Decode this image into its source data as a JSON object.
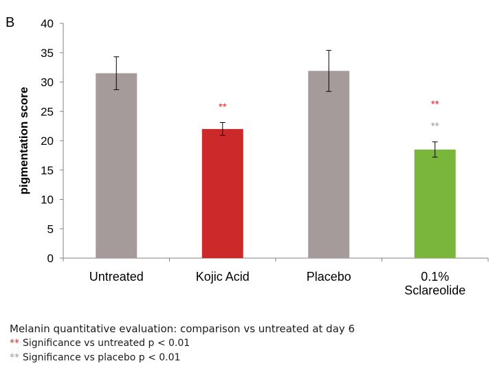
{
  "panel_label": "B",
  "colors": {
    "untreated": "#a59b9b",
    "kojic": "#cc2a2a",
    "placebo": "#a59b9b",
    "sclareolide": "#7ab63b",
    "star_red": "#d52a2a",
    "star_grey": "#9a9a9a"
  },
  "chart_data": {
    "type": "bar",
    "ylabel": "pigmentation score",
    "xlabel": "",
    "ylim": [
      0,
      40
    ],
    "yticks": [
      0,
      5,
      10,
      15,
      20,
      25,
      30,
      35,
      40
    ],
    "grid": false,
    "categories": [
      "Untreated",
      "Kojic Acid",
      "Placebo",
      "0.1% Sclareolide"
    ],
    "category_lines": [
      [
        "Untreated"
      ],
      [
        "Kojic Acid"
      ],
      [
        "Placebo"
      ],
      [
        "0.1%",
        "Sclareolide"
      ]
    ],
    "values": [
      31.5,
      22.0,
      31.9,
      18.5
    ],
    "error": [
      2.8,
      1.1,
      3.5,
      1.3
    ],
    "bar_colors": [
      "#a59b9b",
      "#cc2a2a",
      "#a59b9b",
      "#7ab63b"
    ],
    "annotations": [
      {
        "category": "Kojic Acid",
        "marks": [
          {
            "text": "**",
            "color": "#d52a2a"
          }
        ]
      },
      {
        "category": "0.1% Sclareolide",
        "marks": [
          {
            "text": "**",
            "color": "#d52a2a"
          },
          {
            "text": "**",
            "color": "#9a9a9a"
          }
        ]
      }
    ]
  },
  "notes": {
    "caption": "Melanin quantitative evaluation: comparison vs untreated at day 6",
    "legend1_star": "**",
    "legend1_text": "Significance vs untreated p < 0.01",
    "legend2_star": "**",
    "legend2_text": "Significance vs placebo p < 0.01"
  }
}
